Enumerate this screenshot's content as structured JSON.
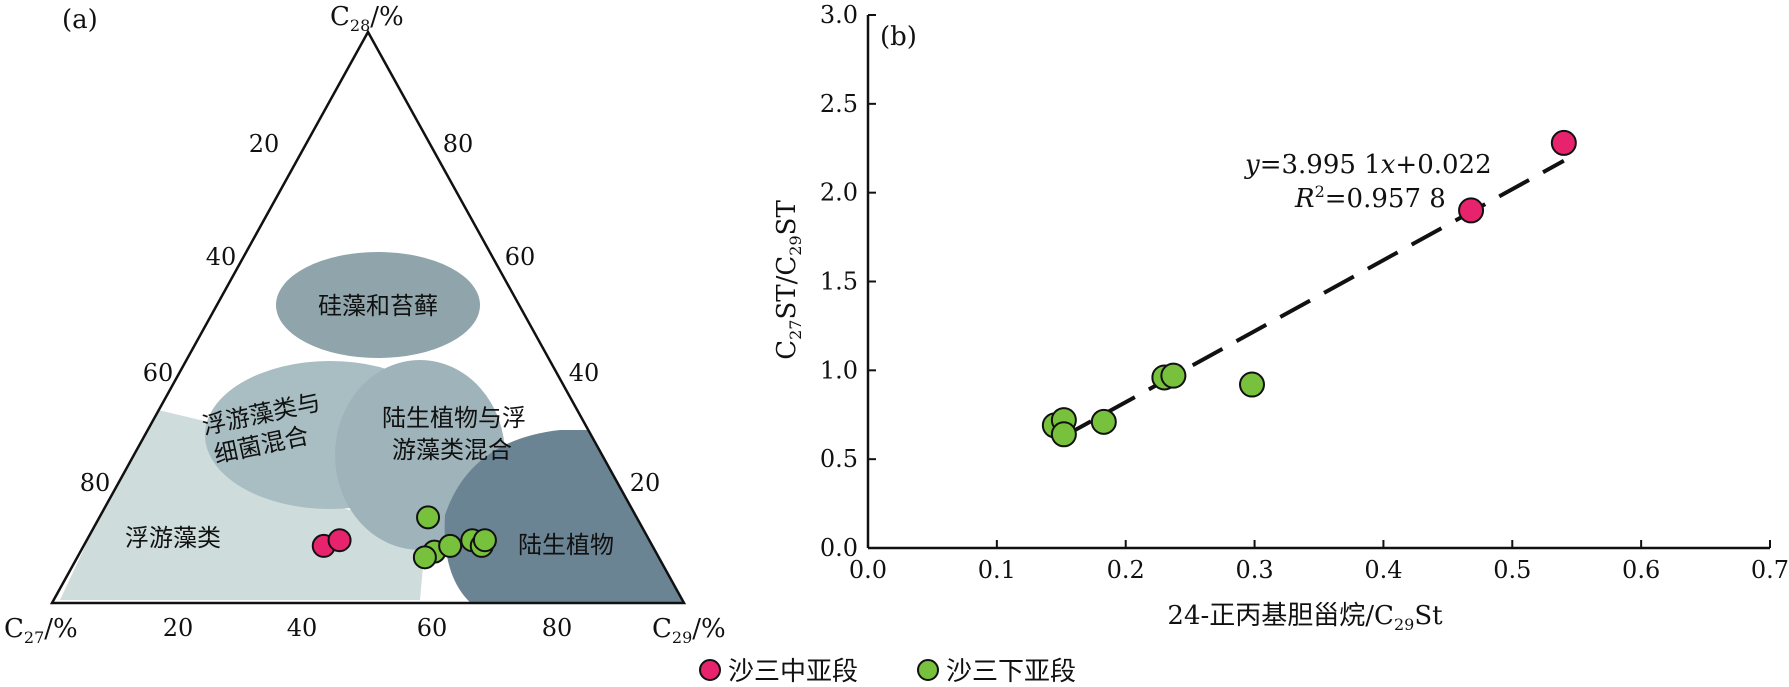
{
  "panel_a": {
    "panel_label": "(a)",
    "apex_top_label": "C",
    "apex_top_sub": "28",
    "apex_top_unit": "/%",
    "apex_left_label": "C",
    "apex_left_sub": "27",
    "apex_left_unit": "/%",
    "apex_right_label": "C",
    "apex_right_sub": "29",
    "apex_right_unit": "/%",
    "left_edge_ticks": [
      "20",
      "40",
      "60",
      "80"
    ],
    "right_edge_ticks": [
      "80",
      "60",
      "40",
      "20"
    ],
    "bottom_ticks": [
      "20",
      "40",
      "60",
      "80"
    ],
    "region_labels": {
      "diatom": "硅藻和苔藓",
      "plankton_bacteria_1": "浮游藻类与",
      "plankton_bacteria_2": "细菌混合",
      "terr_plankton_1": "陆生植物与浮",
      "terr_plankton_2": "游藻类混合",
      "plankton": "浮游藻类",
      "terrestrial": "陆生植物"
    }
  },
  "panel_b": {
    "panel_label": "(b)",
    "x_tick_labels": [
      "0.0",
      "0.1",
      "0.2",
      "0.3",
      "0.4",
      "0.5",
      "0.6",
      "0.7"
    ],
    "y_tick_labels": [
      "0.0",
      "0.5",
      "1.0",
      "1.5",
      "2.0",
      "2.5",
      "3.0"
    ],
    "xlabel_main": "24-正丙基胆甾烷/C",
    "xlabel_sub": "29",
    "xlabel_tail": "St",
    "ylabel_p1": "C",
    "ylabel_s1": "27",
    "ylabel_p2": "ST/C",
    "ylabel_s2": "29",
    "ylabel_p3": "ST",
    "eq_y": "y",
    "eq_mid": "=3.995 1",
    "eq_x": "x",
    "eq_tail": "+0.022",
    "r2_r": "R",
    "r2_sup": "2",
    "r2_tail": "=0.957 8"
  },
  "legend": {
    "middle": "沙三中亚段",
    "lower": "沙三下亚段"
  },
  "colors": {
    "middle": "#e8236e",
    "lower": "#78c13c",
    "region_light": "#cfdcdc",
    "region_diatom": "#8fa5ab",
    "region_mix": "#a9bec2",
    "region_terr": "#6b8494"
  },
  "chart_data": [
    {
      "type": "scatter",
      "subtype": "ternary",
      "axes": [
        "C27/%",
        "C28/%",
        "C29/%"
      ],
      "series": [
        {
          "name": "沙三中亚段",
          "points": [
            {
              "c27": 52,
              "c28": 10,
              "c29": 38
            },
            {
              "c27": 49,
              "c28": 11,
              "c29": 40
            }
          ]
        },
        {
          "name": "沙三下亚段",
          "points": [
            {
              "c27": 33,
              "c28": 15,
              "c29": 52
            },
            {
              "c27": 35,
              "c28": 9,
              "c29": 56
            },
            {
              "c27": 32,
              "c28": 10,
              "c29": 58
            },
            {
              "c27": 28,
              "c28": 11,
              "c29": 61
            },
            {
              "c27": 27,
              "c28": 10,
              "c29": 63
            },
            {
              "c27": 26,
              "c28": 11,
              "c29": 63
            },
            {
              "c27": 37,
              "c28": 8,
              "c29": 55
            }
          ]
        }
      ]
    },
    {
      "type": "scatter",
      "x_range": [
        0,
        0.7
      ],
      "y_range": [
        0,
        3.0
      ],
      "series": [
        {
          "name": "沙三中亚段",
          "points": [
            [
              0.54,
              2.28
            ],
            [
              0.468,
              1.9
            ]
          ]
        },
        {
          "name": "沙三下亚段",
          "points": [
            [
              0.145,
              0.69
            ],
            [
              0.152,
              0.72
            ],
            [
              0.152,
              0.64
            ],
            [
              0.183,
              0.71
            ],
            [
              0.23,
              0.96
            ],
            [
              0.237,
              0.97
            ],
            [
              0.298,
              0.92
            ]
          ]
        }
      ],
      "trendline": {
        "slope": 3.9951,
        "intercept": 0.022,
        "x_range": [
          0.15,
          0.54
        ],
        "style": "dashed"
      }
    }
  ]
}
